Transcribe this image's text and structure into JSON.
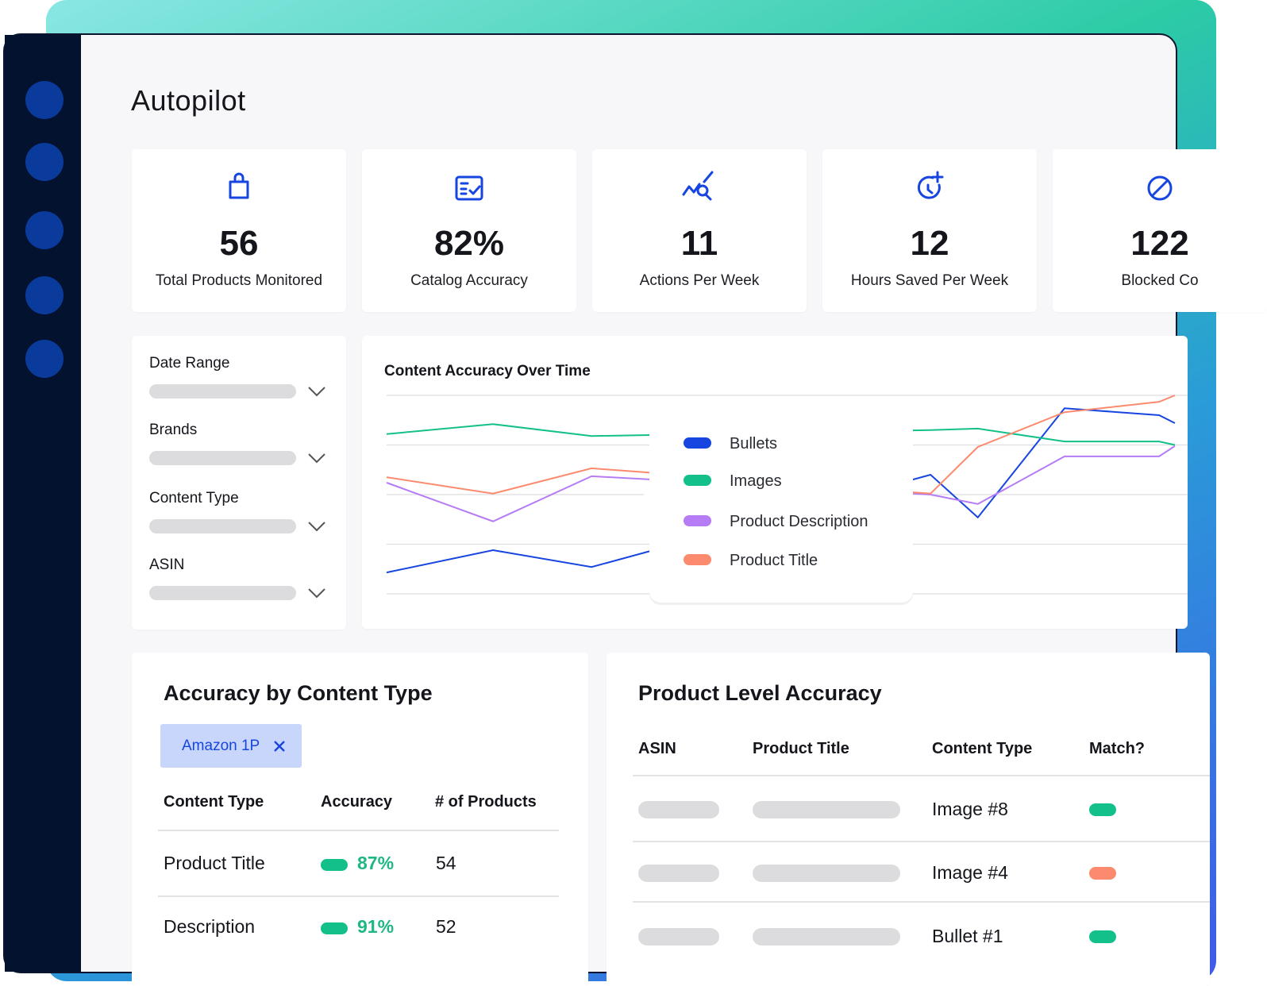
{
  "page": {
    "title": "Autopilot",
    "kpis": [
      {
        "value": "56",
        "label": "Total Products Monitored"
      },
      {
        "value": "82%",
        "label": "Catalog Accuracy"
      },
      {
        "value": "11",
        "label": "Actions Per Week"
      },
      {
        "value": "12",
        "label": "Hours Saved Per Week"
      },
      {
        "value": "122",
        "label": "Blocked Co"
      }
    ],
    "filters": [
      "Date Range",
      "Brands",
      "Content Type",
      "ASIN"
    ],
    "accuracy_table": {
      "title": "Accuracy by Content Type",
      "chip": "Amazon 1P",
      "headers": [
        "Content Type",
        "Accuracy",
        "# of Products"
      ],
      "rows": [
        [
          "Product Title",
          "87%",
          "54"
        ],
        [
          "Description",
          "91%",
          "52"
        ]
      ]
    },
    "product_table": {
      "title": "Product Level Accuracy",
      "headers": [
        "ASIN",
        "Product Title",
        "Content Type",
        "Match?"
      ],
      "rows": [
        {
          "content_type": "Image #8",
          "match_color": "#13c08a"
        },
        {
          "content_type": "Image #4",
          "match_color": "#fb8a6e"
        },
        {
          "content_type": "Bullet #1",
          "match_color": "#13c08a"
        }
      ]
    }
  },
  "chart_data": {
    "type": "line",
    "title": "Content Accuracy Over Time",
    "x": [
      0,
      1.35,
      2.6,
      6.9,
      7.5,
      8.6,
      9.8,
      10
    ],
    "xlim": [
      0,
      10
    ],
    "ylim": [
      0,
      4
    ],
    "yticks": [
      0,
      1,
      2,
      3,
      4
    ],
    "grid": true,
    "series": [
      {
        "name": "Bullets",
        "color": "#1745e0",
        "values": [
          0.43,
          0.88,
          0.54,
          2.4,
          1.54,
          3.74,
          3.6,
          3.44
        ]
      },
      {
        "name": "Images",
        "color": "#13c08a",
        "values": [
          3.22,
          3.42,
          3.18,
          3.3,
          3.33,
          3.07,
          3.07,
          3.0
        ]
      },
      {
        "name": "Product Description",
        "color": "#b57cf5",
        "values": [
          2.24,
          1.46,
          2.37,
          2.0,
          1.81,
          2.77,
          2.77,
          2.98
        ]
      },
      {
        "name": "Product Title",
        "color": "#fb8a6e",
        "values": [
          2.35,
          2.02,
          2.53,
          2.02,
          2.96,
          3.66,
          3.87,
          4.0
        ]
      }
    ]
  }
}
